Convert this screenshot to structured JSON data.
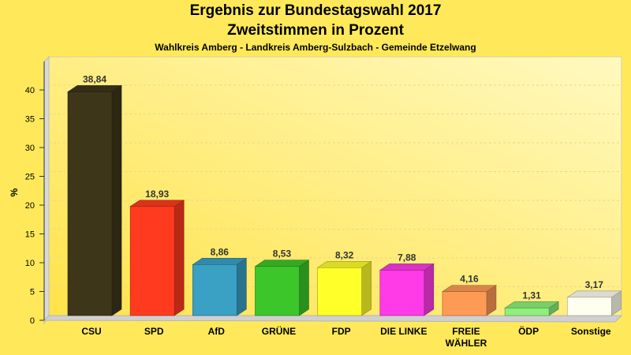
{
  "chart_data": {
    "type": "bar",
    "title": "Ergebnis zur Bundestagswahl 2017",
    "subtitle": "Zweitstimmen in Prozent",
    "subtitle2": "Wahlkreis Amberg - Landkreis Amberg-Sulzbach - Gemeinde Etzelwang",
    "ylabel": "%",
    "ylim": [
      0,
      40
    ],
    "yticks": [
      0,
      5,
      10,
      15,
      20,
      25,
      30,
      35,
      40
    ],
    "categories": [
      "CSU",
      "SPD",
      "AfD",
      "GRÜNE",
      "FDP",
      "DIE LINKE",
      "FREIE WÄHLER",
      "ÖDP",
      "Sonstige"
    ],
    "values": [
      38.84,
      18.93,
      8.86,
      8.53,
      8.32,
      7.88,
      4.16,
      1.31,
      3.17
    ],
    "value_labels": [
      "38,84",
      "18,93",
      "8,86",
      "8,53",
      "8,32",
      "7,88",
      "4,16",
      "1,31",
      "3,17"
    ],
    "colors": [
      "#3d3619",
      "#ff3a1f",
      "#3aa0c4",
      "#3cc62a",
      "#ffff2a",
      "#ff3ae6",
      "#ff9a55",
      "#8ef07a",
      "#fffff0"
    ],
    "grid": true
  }
}
